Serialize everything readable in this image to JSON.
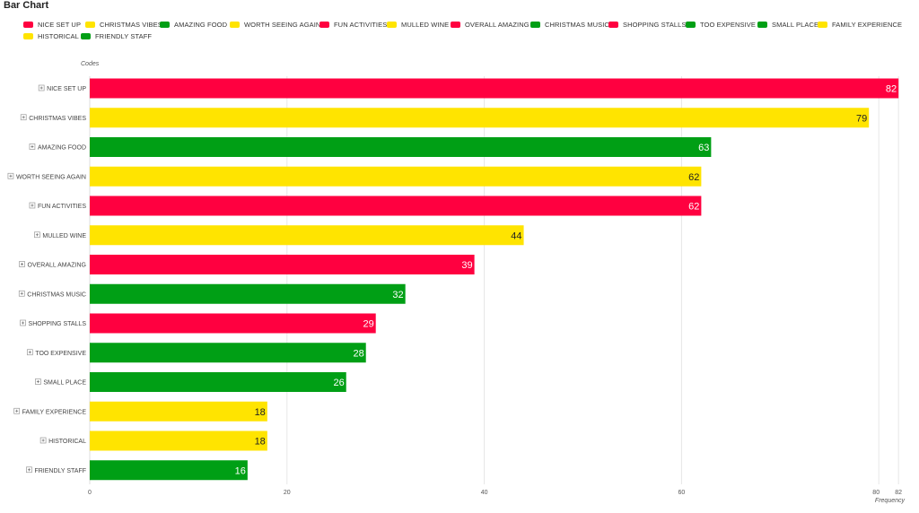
{
  "page_title": "Bar Chart",
  "chart_data": {
    "type": "bar",
    "orientation": "horizontal",
    "ylabel": "Codes",
    "xlabel": "Frequency",
    "xlim": [
      0,
      82
    ],
    "x_ticks": [
      0,
      20,
      40,
      60,
      80,
      82
    ],
    "grid": true,
    "legend_position": "top-left",
    "categories": [
      "NICE SET UP",
      "CHRISTMAS VIBES",
      "AMAZING FOOD",
      "WORTH SEEING AGAIN",
      "FUN ACTIVITIES",
      "MULLED WINE",
      "OVERALL AMAZING",
      "CHRISTMAS MUSIC",
      "SHOPPING STALLS",
      "TOO EXPENSIVE",
      "SMALL PLACE",
      "FAMILY EXPERIENCE",
      "HISTORICAL",
      "FRIENDLY STAFF"
    ],
    "values": [
      82,
      79,
      63,
      62,
      62,
      44,
      39,
      32,
      29,
      28,
      26,
      18,
      18,
      16
    ],
    "colors": [
      "#ff0040",
      "#ffe400",
      "#009f15",
      "#ffe400",
      "#ff0040",
      "#ffe400",
      "#ff0040",
      "#009f15",
      "#ff0040",
      "#009f15",
      "#009f15",
      "#ffe400",
      "#ffe400",
      "#009f15"
    ],
    "value_label_colors": [
      "#ffffff",
      "#222222",
      "#ffffff",
      "#222222",
      "#ffffff",
      "#222222",
      "#ffffff",
      "#ffffff",
      "#ffffff",
      "#ffffff",
      "#ffffff",
      "#222222",
      "#222222",
      "#ffffff"
    ]
  },
  "legend": [
    {
      "label": "NICE SET UP",
      "color": "#ff0040"
    },
    {
      "label": "CHRISTMAS VIBES",
      "color": "#ffe400"
    },
    {
      "label": "AMAZING FOOD",
      "color": "#009f15"
    },
    {
      "label": "WORTH SEEING AGAIN",
      "color": "#ffe400"
    },
    {
      "label": "FUN ACTIVITIES",
      "color": "#ff0040"
    },
    {
      "label": "MULLED WINE",
      "color": "#ffe400"
    },
    {
      "label": "OVERALL AMAZING",
      "color": "#ff0040"
    },
    {
      "label": "CHRISTMAS MUSIC",
      "color": "#009f15"
    },
    {
      "label": "SHOPPING STALLS",
      "color": "#ff0040"
    },
    {
      "label": "TOO EXPENSIVE",
      "color": "#009f15"
    },
    {
      "label": "SMALL PLACE",
      "color": "#009f15"
    },
    {
      "label": "FAMILY EXPERIENCE",
      "color": "#ffe400"
    },
    {
      "label": "HISTORICAL",
      "color": "#ffe400"
    },
    {
      "label": "FRIENDLY STAFF",
      "color": "#009f15"
    }
  ],
  "expand_icon": "plus-square-icon"
}
